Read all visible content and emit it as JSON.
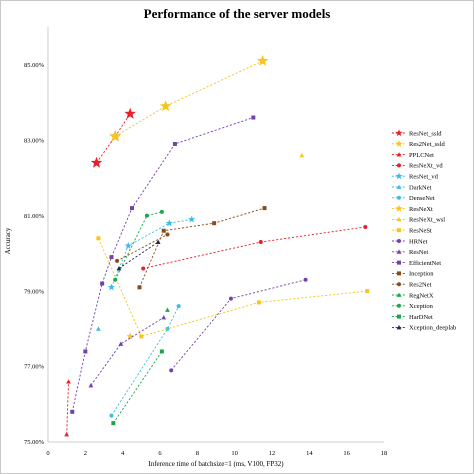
{
  "chart_data": {
    "type": "scatter",
    "title": "Performance of the server models",
    "xlabel": "Inference time of batchsize=1 (ms, V100, FP32)",
    "ylabel": "Accuracy",
    "xlim": [
      0,
      18
    ],
    "ylim": [
      75,
      86
    ],
    "xticks": [
      0,
      2,
      4,
      6,
      8,
      10,
      12,
      14,
      16,
      18
    ],
    "yticks": [
      75,
      77,
      79,
      81,
      83,
      85
    ],
    "xtick_labels": [
      "0",
      "2",
      "4",
      "6",
      "8",
      "10",
      "12",
      "14",
      "16",
      "18"
    ],
    "ytick_labels": [
      "75.00%",
      "77.00%",
      "79.00%",
      "81.00%",
      "83.00%",
      "85.00%"
    ],
    "grid": false,
    "legend_position": "right",
    "series": [
      {
        "name": "ResNet_ssld",
        "color": "#e8202a",
        "marker": "star",
        "x": [
          2.6,
          3.6,
          4.4
        ],
        "y": [
          82.4,
          83.1,
          83.7
        ]
      },
      {
        "name": "Res2Net_ssld",
        "color": "#f7c51c",
        "marker": "star",
        "x": [
          3.6,
          6.3,
          11.5
        ],
        "y": [
          83.1,
          83.9,
          85.1
        ]
      },
      {
        "name": "PPLCNet",
        "color": "#e8202a",
        "marker": "triangle",
        "x": [
          1.0,
          1.1
        ],
        "y": [
          75.2,
          76.6
        ]
      },
      {
        "name": "ResNeXt_vd",
        "color": "#e8202a",
        "marker": "circle",
        "x": [
          5.1,
          11.4,
          17.0
        ],
        "y": [
          79.6,
          80.3,
          80.7
        ]
      },
      {
        "name": "ResNet_vd",
        "color": "#3bbde8",
        "marker": "star",
        "x": [
          3.4,
          4.3,
          6.5,
          7.7
        ],
        "y": [
          79.1,
          80.2,
          80.8,
          80.9
        ]
      },
      {
        "name": "DarkNet",
        "color": "#3bbde8",
        "marker": "triangle",
        "x": [
          2.7
        ],
        "y": [
          78.0
        ]
      },
      {
        "name": "DenseNet",
        "color": "#3bbde8",
        "marker": "circle",
        "x": [
          3.4,
          6.4,
          7.0
        ],
        "y": [
          75.7,
          78.0,
          78.6
        ]
      },
      {
        "name": "ResNeXt",
        "color": "#f7c51c",
        "marker": "star",
        "x": [
          4.4
        ],
        "y": [
          77.8
        ]
      },
      {
        "name": "ResNeXt_wsl",
        "color": "#f7c51c",
        "marker": "triangle",
        "x": [
          13.6
        ],
        "y": [
          82.6
        ]
      },
      {
        "name": "ResNeSt",
        "color": "#f7c51c",
        "marker": "square",
        "x": [
          2.7,
          5.0,
          11.3,
          17.1
        ],
        "y": [
          80.4,
          77.8,
          78.7,
          79.0
        ]
      },
      {
        "name": "HRNet",
        "color": "#7342a8",
        "marker": "circle",
        "x": [
          6.6,
          9.8,
          13.8
        ],
        "y": [
          76.9,
          78.8,
          79.3
        ]
      },
      {
        "name": "ResNet",
        "color": "#7342a8",
        "marker": "triangle",
        "x": [
          2.3,
          3.9,
          6.2
        ],
        "y": [
          76.5,
          77.6,
          78.3
        ]
      },
      {
        "name": "EfficientNet",
        "color": "#7342a8",
        "marker": "square",
        "x": [
          1.3,
          2.0,
          2.9,
          3.4,
          4.5,
          6.8,
          11.0
        ],
        "y": [
          75.8,
          77.4,
          79.2,
          79.9,
          81.2,
          82.9,
          83.6
        ]
      },
      {
        "name": "Inception",
        "color": "#8b4a16",
        "marker": "square",
        "x": [
          4.9,
          6.2,
          8.9,
          11.6
        ],
        "y": [
          79.1,
          80.6,
          80.8,
          81.2
        ]
      },
      {
        "name": "Res2Net",
        "color": "#8b4a16",
        "marker": "circle",
        "x": [
          3.7,
          6.4
        ],
        "y": [
          79.8,
          80.5
        ]
      },
      {
        "name": "RegNetX",
        "color": "#1aa64a",
        "marker": "triangle",
        "x": [
          6.4
        ],
        "y": [
          78.5
        ]
      },
      {
        "name": "Xception",
        "color": "#1aa64a",
        "marker": "circle",
        "x": [
          3.6,
          5.3,
          6.1
        ],
        "y": [
          79.3,
          81.0,
          81.1
        ]
      },
      {
        "name": "HarDNet",
        "color": "#1aa64a",
        "marker": "square",
        "x": [
          3.5,
          6.1
        ],
        "y": [
          75.5,
          77.4
        ]
      },
      {
        "name": "Xception_deeplab",
        "color": "#1f2a4d",
        "marker": "triangle",
        "x": [
          3.8,
          5.9
        ],
        "y": [
          79.6,
          80.3
        ]
      }
    ]
  }
}
